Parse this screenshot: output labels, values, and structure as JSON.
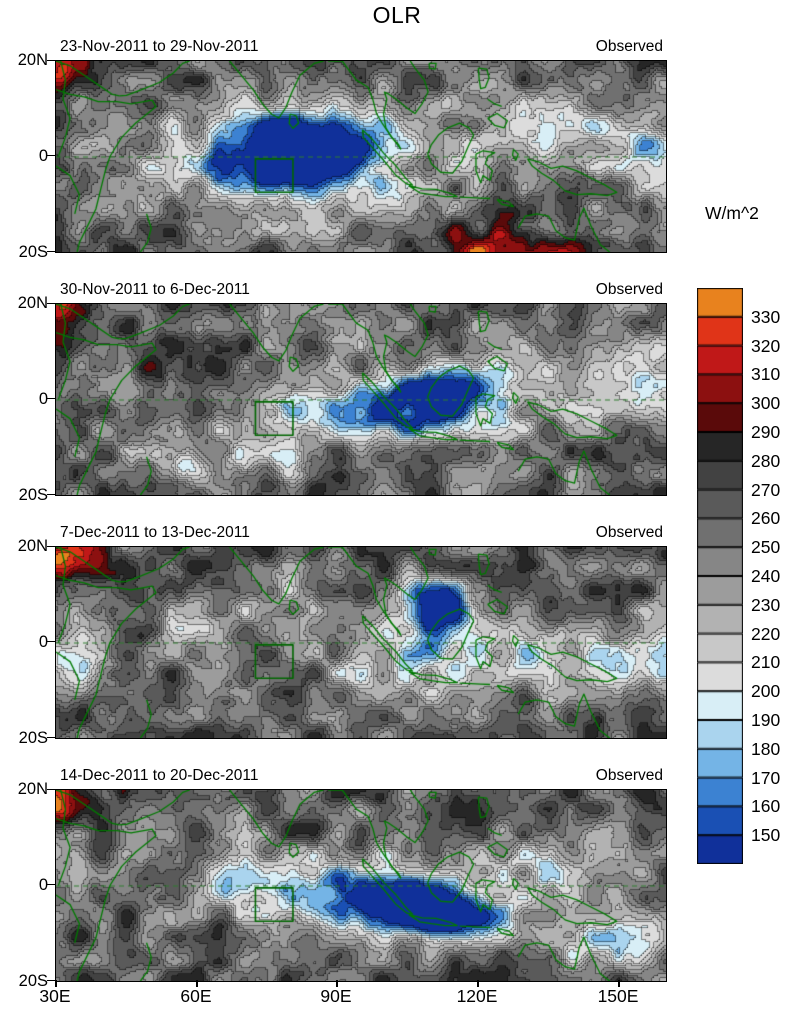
{
  "title": "OLR",
  "chart_data": {
    "type": "heatmap",
    "title": "OLR",
    "units": "W/m^2",
    "lon_range": [
      30,
      160
    ],
    "lat_range": [
      -20,
      20
    ],
    "x_tick_labels": [
      "30E",
      "60E",
      "90E",
      "120E",
      "150E"
    ],
    "y_tick_labels": [
      "20N",
      "0",
      "20S"
    ],
    "colorbar_tick_labels": [
      "330",
      "320",
      "310",
      "300",
      "290",
      "280",
      "270",
      "260",
      "250",
      "240",
      "230",
      "220",
      "210",
      "200",
      "190",
      "180",
      "170",
      "160",
      "150"
    ],
    "levels_w_per_m2": [
      150,
      160,
      170,
      180,
      190,
      200,
      210,
      220,
      230,
      240,
      250,
      260,
      270,
      280,
      290,
      300,
      310,
      320,
      330
    ],
    "palette_low_to_high": [
      "#10309a",
      "#1a50b4",
      "#3c82d2",
      "#74b4e6",
      "#aad4ee",
      "#d8eef6",
      "#dcdcdc",
      "#c8c8c8",
      "#b2b2b2",
      "#9c9c9c",
      "#868686",
      "#707070",
      "#5a5a5a",
      "#424242",
      "#262626",
      "#5a0a0a",
      "#8c1010",
      "#c01818",
      "#e03418",
      "#e8821e"
    ],
    "coastline_color": "#007a00",
    "study_box": {
      "lon_min": 72.5,
      "lon_max": 80.5,
      "lat_min": -7.5,
      "lat_max": -0.5
    },
    "panels": [
      {
        "title": "23-Nov-2011 to 29-Nov-2011",
        "source_label": "Observed",
        "seed": 11,
        "low_olr_centers": [
          {
            "lon": 82,
            "lat": 1,
            "rlon": 9,
            "rlat": 5,
            "amp": -115
          },
          {
            "lon": 78,
            "lat": -2,
            "rlon": 20,
            "rlat": 9,
            "amp": -50
          },
          {
            "lon": 92,
            "lat": 2,
            "rlon": 13,
            "rlat": 6,
            "amp": -45
          },
          {
            "lon": 65,
            "lat": -1,
            "rlon": 8,
            "rlat": 5,
            "amp": -30
          },
          {
            "lon": 140,
            "lat": 6,
            "rlon": 9,
            "rlat": 5,
            "amp": -45
          },
          {
            "lon": 158,
            "lat": 2,
            "rlon": 7,
            "rlat": 6,
            "amp": -50
          },
          {
            "lon": 125,
            "lat": 7,
            "rlon": 8,
            "rlat": 4,
            "amp": -30
          }
        ],
        "high_olr_centers": [
          {
            "lon": 31,
            "lat": 19,
            "rlon": 5,
            "rlat": 4,
            "amp": 60
          },
          {
            "lon": 119,
            "lat": -20,
            "rlon": 8,
            "rlat": 3.5,
            "amp": 55
          },
          {
            "lon": 133,
            "lat": -21,
            "rlon": 7,
            "rlat": 3.5,
            "amp": 45
          }
        ]
      },
      {
        "title": "30-Nov-2011 to 6-Dec-2011",
        "source_label": "Observed",
        "seed": 22,
        "low_olr_centers": [
          {
            "lon": 107,
            "lat": -1,
            "rlon": 9,
            "rlat": 5,
            "amp": -75
          },
          {
            "lon": 117,
            "lat": 3,
            "rlon": 7,
            "rlat": 4,
            "amp": -60
          },
          {
            "lon": 97,
            "lat": -2,
            "rlon": 14,
            "rlat": 5,
            "amp": -50
          },
          {
            "lon": 80,
            "lat": -2,
            "rlon": 9,
            "rlat": 4,
            "amp": -40
          },
          {
            "lon": 130,
            "lat": 0,
            "rlon": 10,
            "rlat": 5,
            "amp": -35
          },
          {
            "lon": 156,
            "lat": 5,
            "rlon": 9,
            "rlat": 5,
            "amp": -55
          },
          {
            "lon": 57,
            "lat": -13,
            "rlon": 4,
            "rlat": 3,
            "amp": -70
          },
          {
            "lon": 68,
            "lat": -13,
            "rlon": 4,
            "rlat": 3,
            "amp": -40
          },
          {
            "lon": 79,
            "lat": -13,
            "rlon": 4,
            "rlat": 3,
            "amp": -35
          }
        ],
        "high_olr_centers": [
          {
            "lon": 32,
            "lat": 18,
            "rlon": 5,
            "rlat": 4,
            "amp": 58
          },
          {
            "lon": 55,
            "lat": 8,
            "rlon": 9,
            "rlat": 6,
            "amp": 20
          }
        ]
      },
      {
        "title": "7-Dec-2011 to 13-Dec-2011",
        "source_label": "Observed",
        "seed": 33,
        "low_olr_centers": [
          {
            "lon": 112,
            "lat": 8,
            "rlon": 6,
            "rlat": 4,
            "amp": -85
          },
          {
            "lon": 105,
            "lat": 4,
            "rlon": 10,
            "rlat": 5,
            "amp": -45
          },
          {
            "lon": 119,
            "lat": -2,
            "rlon": 12,
            "rlat": 5,
            "amp": -40
          },
          {
            "lon": 140,
            "lat": -5,
            "rlon": 10,
            "rlat": 4,
            "amp": -40
          },
          {
            "lon": 157,
            "lat": -3,
            "rlon": 7,
            "rlat": 5,
            "amp": -50
          },
          {
            "lon": 35,
            "lat": -5,
            "rlon": 5,
            "rlat": 4,
            "amp": -55
          },
          {
            "lon": 60,
            "lat": 5,
            "rlon": 7,
            "rlat": 4,
            "amp": -35
          },
          {
            "lon": 75,
            "lat": 12,
            "rlon": 5,
            "rlat": 3,
            "amp": -35
          },
          {
            "lon": 100,
            "lat": -7,
            "rlon": 9,
            "rlat": 4,
            "amp": -35
          }
        ],
        "high_olr_centers": [
          {
            "lon": 32,
            "lat": 18,
            "rlon": 6,
            "rlat": 4,
            "amp": 60
          }
        ]
      },
      {
        "title": "14-Dec-2011 to 20-Dec-2011",
        "source_label": "Observed",
        "seed": 44,
        "low_olr_centers": [
          {
            "lon": 103,
            "lat": -4,
            "rlon": 8,
            "rlat": 4.5,
            "amp": -110
          },
          {
            "lon": 113,
            "lat": -5,
            "rlon": 7,
            "rlat": 4,
            "amp": -85
          },
          {
            "lon": 95,
            "lat": -2,
            "rlon": 15,
            "rlat": 6,
            "amp": -50
          },
          {
            "lon": 79,
            "lat": -1,
            "rlon": 12,
            "rlat": 4,
            "amp": -40
          },
          {
            "lon": 68,
            "lat": 3,
            "rlon": 8,
            "rlat": 4,
            "amp": -30
          },
          {
            "lon": 134,
            "lat": 4,
            "rlon": 7,
            "rlat": 4,
            "amp": -55
          },
          {
            "lon": 143,
            "lat": -12,
            "rlon": 7,
            "rlat": 3.5,
            "amp": -45
          },
          {
            "lon": 156,
            "lat": -12,
            "rlon": 6,
            "rlat": 3.5,
            "amp": -50
          },
          {
            "lon": 126,
            "lat": -8,
            "rlon": 9,
            "rlat": 4,
            "amp": -40
          }
        ],
        "high_olr_centers": [
          {
            "lon": 32,
            "lat": 18,
            "rlon": 6,
            "rlat": 4,
            "amp": 55
          }
        ]
      }
    ]
  }
}
